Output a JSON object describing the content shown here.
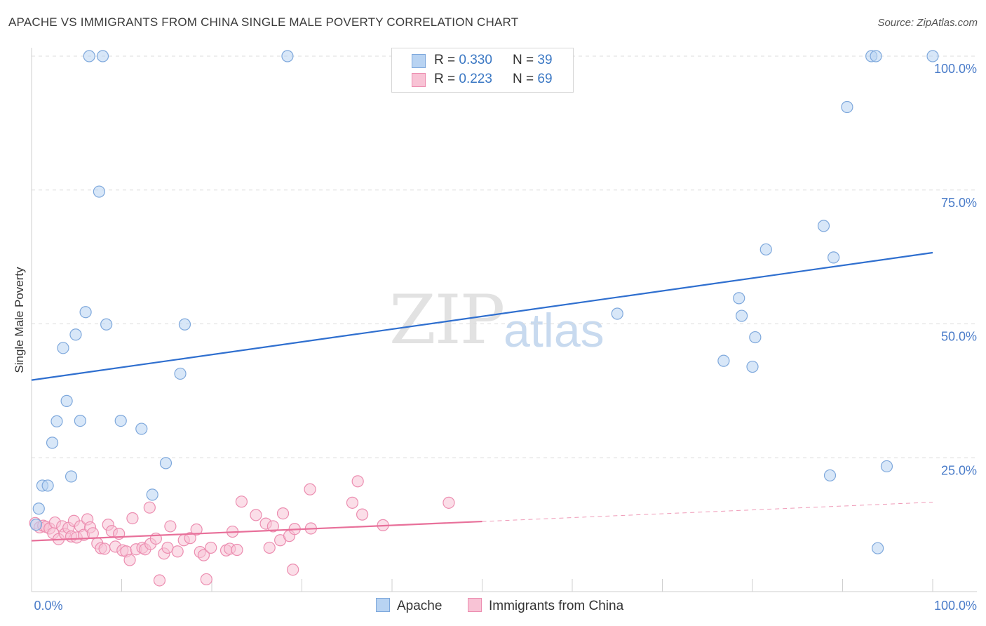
{
  "title": "APACHE VS IMMIGRANTS FROM CHINA SINGLE MALE POVERTY CORRELATION CHART",
  "source": "Source: ZipAtlas.com",
  "watermark": {
    "zip": "ZIP",
    "atlas": "atlas"
  },
  "legend": {
    "apache": {
      "r_label": "R =",
      "r_value": "0.330",
      "n_label": "N =",
      "n_value": "39"
    },
    "china": {
      "r_label": "R =",
      "r_value": "0.223",
      "n_label": "N =",
      "n_value": "69"
    }
  },
  "bottom_legend": {
    "apache": "Apache",
    "china": "Immigrants from China"
  },
  "colors": {
    "apache_fill": "#b8d3f2",
    "apache_stroke": "#7ea8dc",
    "apache_line": "#2f6fcf",
    "china_fill": "#f8c3d5",
    "china_stroke": "#ec8db0",
    "china_line": "#e8709a",
    "grid": "#dcdcdc",
    "tick_text": "#4a7cc9"
  },
  "chart_data": {
    "type": "scatter",
    "title": "APACHE VS IMMIGRANTS FROM CHINA SINGLE MALE POVERTY CORRELATION CHART",
    "xlabel": "",
    "ylabel": "Single Male Poverty",
    "xlim": [
      0,
      100
    ],
    "ylim": [
      0,
      100
    ],
    "x_tick_labels": [
      "0.0%",
      "100.0%"
    ],
    "y_ticks": [
      25,
      50,
      75,
      100
    ],
    "y_tick_labels": [
      "25.0%",
      "50.0%",
      "75.0%",
      "100.0%"
    ],
    "series": [
      {
        "name": "Apache",
        "points": [
          [
            0.5,
            12.5
          ],
          [
            0.8,
            15.5
          ],
          [
            1.2,
            19.8
          ],
          [
            1.8,
            19.8
          ],
          [
            2.3,
            27.8
          ],
          [
            2.8,
            31.8
          ],
          [
            3.5,
            45.5
          ],
          [
            3.9,
            35.6
          ],
          [
            4.4,
            21.5
          ],
          [
            4.9,
            48.0
          ],
          [
            5.4,
            31.9
          ],
          [
            6.0,
            52.2
          ],
          [
            6.4,
            100.0
          ],
          [
            7.5,
            74.7
          ],
          [
            7.9,
            100.0
          ],
          [
            8.3,
            49.9
          ],
          [
            9.9,
            31.9
          ],
          [
            12.2,
            30.4
          ],
          [
            13.4,
            18.1
          ],
          [
            14.9,
            24.0
          ],
          [
            16.5,
            40.7
          ],
          [
            17.0,
            49.9
          ],
          [
            28.4,
            100.0
          ],
          [
            65.0,
            51.9
          ],
          [
            76.8,
            43.1
          ],
          [
            78.5,
            54.8
          ],
          [
            78.8,
            51.5
          ],
          [
            80.0,
            42.0
          ],
          [
            80.3,
            47.5
          ],
          [
            81.5,
            63.9
          ],
          [
            87.9,
            68.3
          ],
          [
            88.6,
            21.7
          ],
          [
            89.0,
            62.4
          ],
          [
            90.5,
            90.5
          ],
          [
            93.2,
            100.0
          ],
          [
            93.7,
            100.0
          ],
          [
            93.9,
            8.1
          ],
          [
            94.9,
            23.4
          ],
          [
            100.0,
            100.0
          ]
        ],
        "trend": {
          "x": [
            0,
            100
          ],
          "y": [
            39.5,
            63.3
          ]
        }
      },
      {
        "name": "Immigrants from China",
        "points": [
          [
            0.4,
            12.8
          ],
          [
            0.9,
            12.0
          ],
          [
            1.3,
            12.3
          ],
          [
            1.6,
            12.1
          ],
          [
            2.0,
            11.8
          ],
          [
            2.4,
            10.9
          ],
          [
            2.6,
            12.9
          ],
          [
            3.0,
            9.8
          ],
          [
            3.4,
            12.2
          ],
          [
            3.7,
            10.8
          ],
          [
            4.1,
            11.9
          ],
          [
            4.4,
            10.3
          ],
          [
            4.7,
            13.2
          ],
          [
            5.0,
            10.1
          ],
          [
            5.4,
            12.2
          ],
          [
            5.8,
            10.6
          ],
          [
            6.2,
            13.5
          ],
          [
            6.5,
            12.0
          ],
          [
            6.8,
            10.9
          ],
          [
            7.3,
            9.0
          ],
          [
            7.7,
            8.1
          ],
          [
            8.1,
            8.0
          ],
          [
            8.5,
            12.5
          ],
          [
            8.9,
            11.3
          ],
          [
            9.3,
            8.4
          ],
          [
            9.7,
            10.8
          ],
          [
            10.1,
            7.7
          ],
          [
            10.5,
            7.5
          ],
          [
            10.9,
            5.9
          ],
          [
            11.2,
            13.7
          ],
          [
            11.6,
            7.9
          ],
          [
            12.3,
            8.2
          ],
          [
            12.6,
            7.9
          ],
          [
            13.2,
            8.9
          ],
          [
            13.1,
            15.7
          ],
          [
            13.8,
            9.9
          ],
          [
            14.2,
            2.1
          ],
          [
            14.7,
            7.1
          ],
          [
            15.1,
            8.2
          ],
          [
            15.4,
            12.2
          ],
          [
            16.2,
            7.5
          ],
          [
            16.9,
            9.6
          ],
          [
            17.6,
            10.0
          ],
          [
            18.3,
            11.6
          ],
          [
            18.7,
            7.4
          ],
          [
            19.1,
            6.8
          ],
          [
            19.4,
            2.3
          ],
          [
            19.9,
            8.2
          ],
          [
            21.6,
            7.7
          ],
          [
            22.0,
            8.0
          ],
          [
            22.8,
            7.8
          ],
          [
            22.3,
            11.2
          ],
          [
            23.3,
            16.8
          ],
          [
            24.9,
            14.3
          ],
          [
            26.0,
            12.7
          ],
          [
            26.4,
            8.2
          ],
          [
            26.8,
            12.2
          ],
          [
            27.6,
            9.6
          ],
          [
            27.9,
            14.6
          ],
          [
            28.6,
            10.4
          ],
          [
            29.0,
            4.1
          ],
          [
            29.2,
            11.7
          ],
          [
            30.9,
            19.1
          ],
          [
            31.0,
            11.8
          ],
          [
            35.6,
            16.6
          ],
          [
            36.2,
            20.6
          ],
          [
            36.7,
            14.4
          ],
          [
            39.0,
            12.4
          ],
          [
            46.3,
            16.6
          ]
        ],
        "trend": {
          "x": [
            0,
            50
          ],
          "y": [
            9.5,
            13.1
          ]
        },
        "trend_dashed": {
          "x": [
            50,
            100
          ],
          "y": [
            13.1,
            16.7
          ]
        }
      }
    ]
  }
}
